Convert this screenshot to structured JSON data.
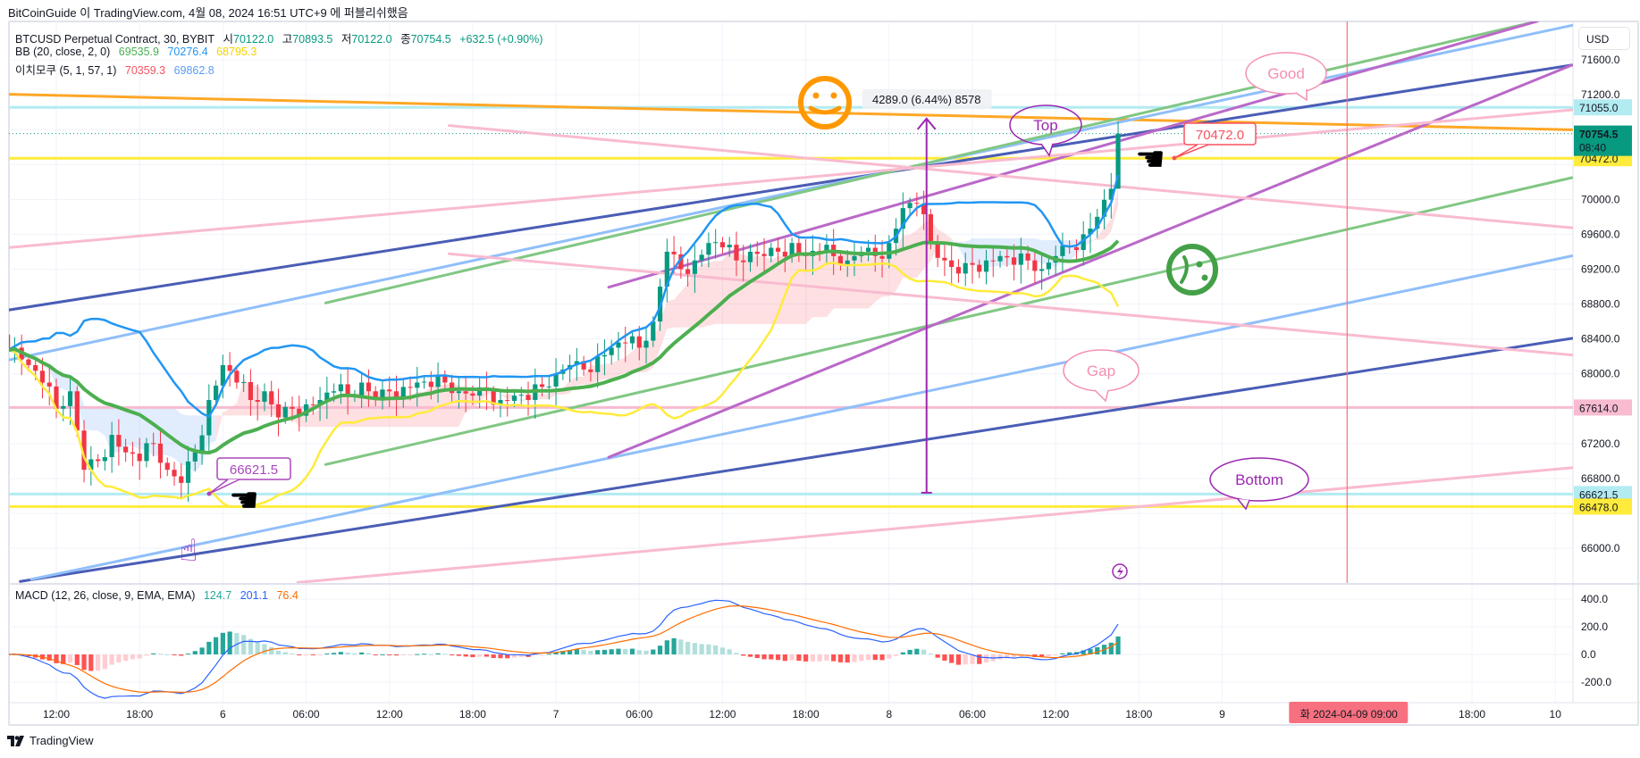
{
  "header": {
    "published": "BitCoinGuide 이 TradingView.com, 4월 08, 2024 16:51 UTC+9 에 퍼블리쉬했음"
  },
  "legend": {
    "symbol": "BTCUSD Perpetual Contract, 30, BYBIT",
    "o_label": "시",
    "o": "70122.0",
    "h_label": "고",
    "h": "70893.5",
    "l_label": "저",
    "l": "70122.0",
    "c_label": "종",
    "c": "70754.5",
    "change": "+632.5 (+0.90%)",
    "bb": {
      "label": "BB (20, close, 2, 0)",
      "mid": "69535.9",
      "upper": "70276.4",
      "lower": "68795.3"
    },
    "ichimoku": {
      "label": "이치모쿠 (5, 1, 57, 1)",
      "a": "70359.3",
      "b": "69862.8"
    }
  },
  "macd": {
    "label": "MACD (12, 26, close, 9, EMA, EMA)",
    "hist": "124.7",
    "macd": "201.1",
    "signal": "76.4",
    "ticks": [
      "400.0",
      "200.0",
      "0.0",
      "-200.0"
    ],
    "tick_values": [
      400,
      200,
      0,
      -200
    ]
  },
  "colors": {
    "up": "#089981",
    "down": "#f23645",
    "bb_mid": "#4caf50",
    "bb_upper": "#2196f3",
    "bb_lower": "#ffeb3b",
    "macd": "#2962ff",
    "signal": "#ff6d00",
    "ichi_a": "#f7525f",
    "ichi_b": "#5b9cf6"
  },
  "price_axis": {
    "currency": "USD",
    "ticks": [
      "71600.0",
      "71200.0",
      "70000.0",
      "69600.0",
      "69200.0",
      "68800.0",
      "68400.0",
      "68000.0",
      "67200.0",
      "66800.0",
      "66000.0"
    ],
    "badges": [
      {
        "value": 71055.0,
        "text": "71055.0",
        "bg": "#b2ebf2",
        "fg": "#131722"
      },
      {
        "value": 70472.0,
        "text": "70472.0",
        "bg": "#ffeb3b",
        "fg": "#131722"
      },
      {
        "value": 67614.0,
        "text": "67614.0",
        "bg": "#f8bbd0",
        "fg": "#131722"
      },
      {
        "value": 66621.5,
        "text": "66621.5",
        "bg": "#b2ebf2",
        "fg": "#131722"
      },
      {
        "value": 66478.0,
        "text": "66478.0",
        "bg": "#ffeb3b",
        "fg": "#131722"
      }
    ],
    "current": {
      "value": 70754.5,
      "price": "70754.5",
      "countdown": "08:40",
      "bg": "#089981"
    }
  },
  "time_axis": {
    "labels": [
      {
        "t": 0,
        "label": "12:00"
      },
      {
        "t": 6,
        "label": "18:00"
      },
      {
        "t": 12,
        "label": "6"
      },
      {
        "t": 18,
        "label": "06:00"
      },
      {
        "t": 24,
        "label": "12:00"
      },
      {
        "t": 30,
        "label": "18:00"
      },
      {
        "t": 36,
        "label": "7"
      },
      {
        "t": 42,
        "label": "06:00"
      },
      {
        "t": 48,
        "label": "12:00"
      },
      {
        "t": 54,
        "label": "18:00"
      },
      {
        "t": 60,
        "label": "8"
      },
      {
        "t": 66,
        "label": "06:00"
      },
      {
        "t": 72,
        "label": "12:00"
      },
      {
        "t": 78,
        "label": "18:00"
      },
      {
        "t": 84,
        "label": "9"
      },
      {
        "t": 102,
        "label": "18:00"
      },
      {
        "t": 108,
        "label": "10"
      }
    ],
    "marker": {
      "t": 93,
      "label": "화 2024-04-09   09:00",
      "color": "#f7707f"
    }
  },
  "chart_data": {
    "type": "candlestick",
    "title": "BTCUSD Perpetual Contract, 30, BYBIT",
    "x_unit": "hours from 5th 12:00",
    "start_t": -3,
    "hourly_closes": [
      68300,
      68100,
      67900,
      67600,
      67800,
      66900,
      67000,
      67300,
      67100,
      67000,
      67200,
      66900,
      66750,
      67100,
      67700,
      68100,
      67900,
      67700,
      67800,
      67500,
      67600,
      67650,
      67700,
      67800,
      67750,
      67900,
      67700,
      67800,
      67850,
      67900,
      67850,
      67900,
      67800,
      67750,
      67800,
      67700,
      67750,
      67700,
      67850,
      68000,
      68100,
      68050,
      68200,
      68300,
      68350,
      68300,
      68600,
      69400,
      69200,
      69300,
      69500,
      69450,
      69300,
      69400,
      69350,
      69400,
      69500,
      69350,
      69400,
      69350,
      69300,
      69400,
      69350,
      69500,
      69900,
      69950,
      69500,
      69300,
      69150,
      69250,
      69300,
      69350,
      69250,
      69300,
      69200,
      69350,
      69450,
      69600,
      69800,
      70122
    ],
    "last_candle": {
      "t": 76.5,
      "o": 70122.0,
      "h": 70893.5,
      "l": 70122.0,
      "c": 70754.5
    },
    "ylim": [
      65500,
      72200
    ]
  },
  "drawings": {
    "lines": [
      {
        "name": "orange-trendline",
        "t1": -3.5,
        "p1": 71205,
        "t2": 109.2,
        "p2": 70798,
        "color": "#ffa726",
        "w": 3
      },
      {
        "name": "navy-upper-trendline",
        "t1": -3.5,
        "p1": 68730,
        "t2": 109.2,
        "p2": 71540,
        "color": "#4a5db5",
        "w": 3
      },
      {
        "name": "navy-lower-trendline",
        "t1": -2.6,
        "p1": 65620,
        "t2": 109.2,
        "p2": 68407,
        "color": "#4a5db5",
        "w": 3
      },
      {
        "name": "lightblue-upper-trendline",
        "t1": -3.5,
        "p1": 68156,
        "t2": 109.2,
        "p2": 71995,
        "color": "#90bff9",
        "w": 3
      },
      {
        "name": "lightblue-lower-trendline",
        "t1": -1.8,
        "p1": 65644,
        "t2": 109.2,
        "p2": 69352,
        "color": "#90bff9",
        "w": 3
      },
      {
        "name": "green-upper-trendline",
        "t1": 19.4,
        "p1": 68813,
        "t2": 106.7,
        "p2": 72042,
        "color": "#81c784",
        "w": 3
      },
      {
        "name": "green-lower-trendline",
        "t1": 19.4,
        "p1": 66960,
        "t2": 109.2,
        "p2": 70249,
        "color": "#81c784",
        "w": 3
      },
      {
        "name": "purple-upper-trendline",
        "t1": 39.8,
        "p1": 68993,
        "t2": 106.7,
        "p2": 72042,
        "color": "#ba68c8",
        "w": 3
      },
      {
        "name": "purple-lower-trendline",
        "t1": 39.8,
        "p1": 67044,
        "t2": 109.2,
        "p2": 71540,
        "color": "#ba68c8",
        "w": 3
      },
      {
        "name": "pink-trendline-1",
        "t1": -3.5,
        "p1": 69447,
        "t2": 109.2,
        "p2": 71026,
        "color": "#f8bbd0",
        "w": 3
      },
      {
        "name": "pink-trendline-2",
        "t1": 28.3,
        "p1": 70847,
        "t2": 109.2,
        "p2": 69674,
        "color": "#f8bbd0",
        "w": 3
      },
      {
        "name": "pink-trendline-3",
        "t1": 28.3,
        "p1": 69376,
        "t2": 109.2,
        "p2": 68216,
        "color": "#f8bbd0",
        "w": 3
      },
      {
        "name": "pink-trendline-4",
        "t1": 17.4,
        "p1": 65608,
        "t2": 109.2,
        "p2": 66924,
        "color": "#f8bbd0",
        "w": 3
      }
    ],
    "hlines": [
      {
        "p": 71055.0,
        "color": "#b2ebf2"
      },
      {
        "p": 70472.0,
        "color": "#ffeb3b"
      },
      {
        "p": 67614.0,
        "color": "#f8bbd0"
      },
      {
        "p": 66621.5,
        "color": "#b2ebf2"
      },
      {
        "p": 66478.0,
        "color": "#ffeb3b"
      }
    ],
    "measure": {
      "t": 62.7,
      "p_from": 66637,
      "p_to": 70926,
      "label": "4289.0 (6.44%) 8578",
      "color": "#9c27b0"
    },
    "callouts": {
      "top": "Top",
      "good": "Good",
      "gap": "Gap",
      "bottom": "Bottom",
      "price_high": "70472.0",
      "price_low": "66621.5"
    }
  },
  "footer": {
    "brand": "TradingView"
  }
}
